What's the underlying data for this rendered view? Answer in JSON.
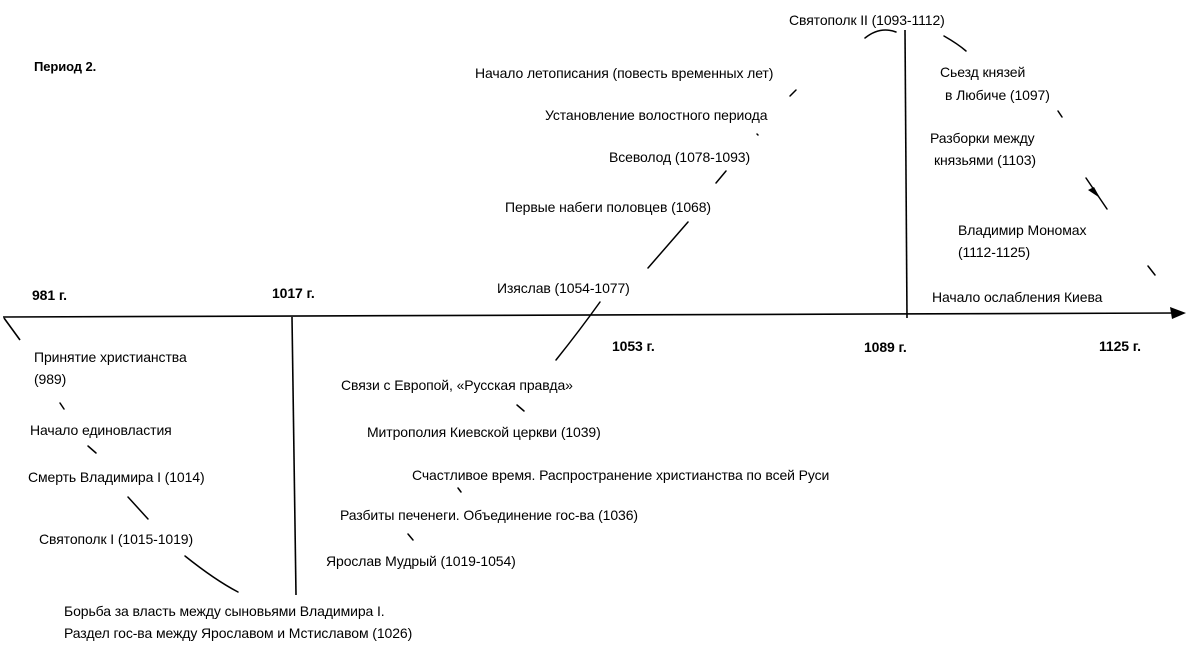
{
  "title": "Период 2.",
  "axis_dates": [
    "981 г.",
    "1017 г.",
    "1053 г.",
    "1089 г.",
    "1125 г."
  ],
  "events": {
    "e1": "Принятие христианства",
    "e1b": "(989)",
    "e2": "Начало единовластия",
    "e3": "Смерть Владимира I (1014)",
    "e4": "Святополк I (1015-1019)",
    "e5": "Борьба за власть между сыновьями Владимира I.",
    "e5b": "Раздел гос-ва между Ярославом и Мстиславом (1026)",
    "e6": "Ярослав Мудрый (1019-1054)",
    "e7": "Разбиты печенеги. Объединение гос-ва (1036)",
    "e8": "Счастливое время. Распространение христианства по всей Руси",
    "e9": "Митрополия Киевской церкви (1039)",
    "e10": "Связи с Европой, «Русская правда»",
    "e11": "Изяслав (1054-1077)",
    "e12": "Первые набеги половцев (1068)",
    "e13": "Всеволод (1078-1093)",
    "e14": "Установление волостного периода",
    "e15": "Начало летописания (повесть временных лет)",
    "e16": "Святополк II (1093-1112)",
    "e17": "Сьезд князей",
    "e17b": "в Любиче (1097)",
    "e18": "Разборки между",
    "e18b": "князьями (1103)",
    "e19": "Владимир Мономах",
    "e19b": "(1112-1125)",
    "e20": "Начало ослабления Киева"
  }
}
